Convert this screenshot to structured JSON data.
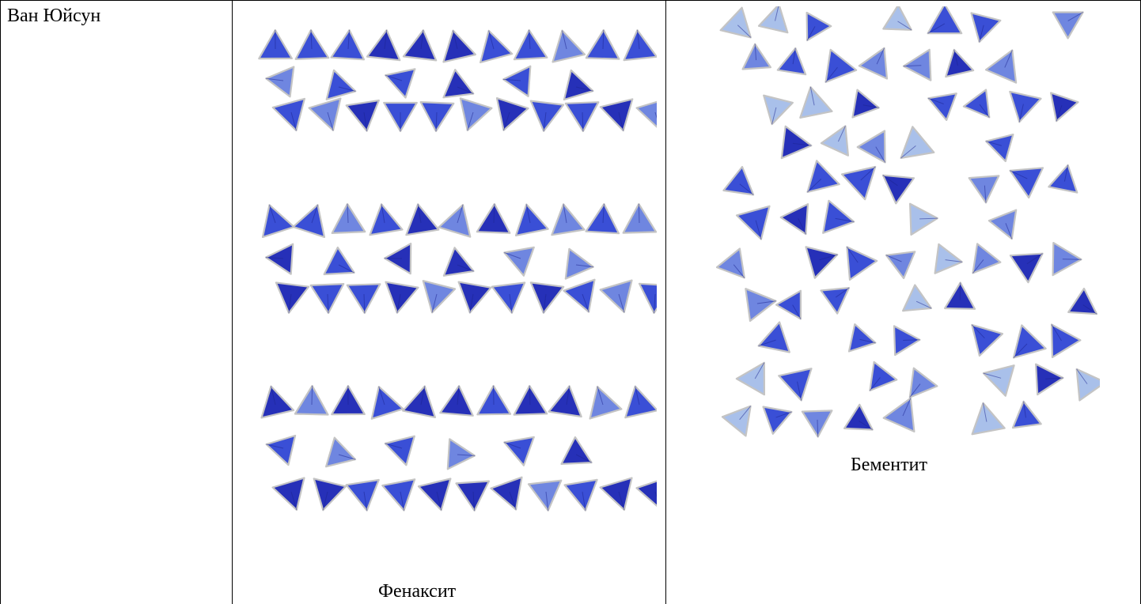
{
  "table": {
    "row": {
      "author": "Ван Юйсун",
      "figure_left_caption": "Фенаксит",
      "figure_right_caption": "Бементит"
    }
  },
  "colors": {
    "tetra_dark": "#2630b8",
    "tetra_mid": "#3a4fd6",
    "tetra_light": "#6f86e0",
    "tetra_pale": "#a9c0ea",
    "edge": "#c4c4c4"
  }
}
